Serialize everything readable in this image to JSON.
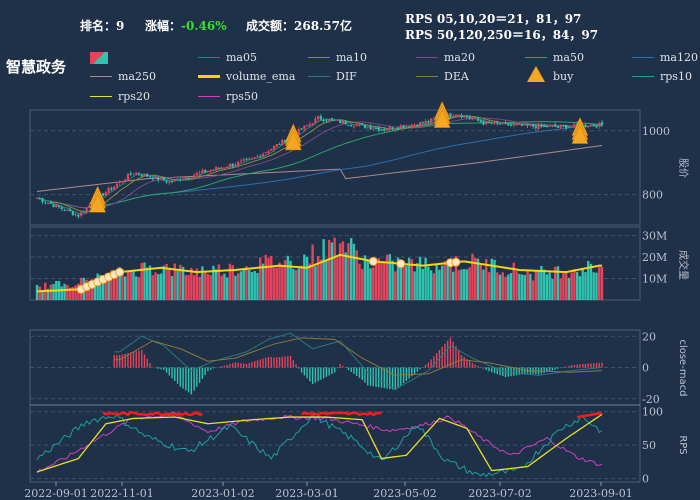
{
  "header": {
    "rank_label": "排名：",
    "rank_value": "9",
    "change_label": "涨幅：",
    "change_value": "-0.46%",
    "volume_label": "成交额：",
    "volume_value": "268.57亿",
    "rps_line1": "RPS 05,10,20＝21，81，97",
    "rps_line2": "RPS 50,120,250＝16，84，97"
  },
  "title": "智慧政务",
  "colors": {
    "background": "#1f3049",
    "up": "#e8435a",
    "down": "#2ec4b0",
    "volume_ema": "#f5d60e",
    "buy": "#f5a623",
    "macd_red": "#e8435a",
    "macd_green": "#2ec4b0"
  },
  "legend": [
    {
      "label": "ma05",
      "color": "#1b8a8c",
      "icon": "line"
    },
    {
      "label": "ma10",
      "color": "#8a8a3c",
      "icon": "line"
    },
    {
      "label": "ma20",
      "color": "#7a4a8a",
      "icon": "line"
    },
    {
      "label": "ma50",
      "color": "#2ea36a",
      "icon": "line"
    },
    {
      "label": "ma120",
      "color": "#2a6fb0",
      "icon": "line"
    },
    {
      "label": "ma250",
      "color": "#b08a8a",
      "icon": "line"
    },
    {
      "label": "volume_ema",
      "color": "#f5d60e",
      "icon": "thick-line"
    },
    {
      "label": "DIF",
      "color": "#2a7a7a",
      "icon": "line"
    },
    {
      "label": "DEA",
      "color": "#8a7a3a",
      "icon": "line"
    },
    {
      "label": "buy",
      "color": "#f5a623",
      "icon": "triangle"
    },
    {
      "label": "rps10",
      "color": "#1aa0a0",
      "icon": "line"
    },
    {
      "label": "rps20",
      "color": "#e8e020",
      "icon": "line"
    },
    {
      "label": "rps50",
      "color": "#d040c0",
      "icon": "line"
    }
  ],
  "chart_data": [
    {
      "type": "candlestick",
      "ylabel": "股价",
      "yticks": [
        800,
        1000
      ],
      "ylim": [
        705,
        1065
      ],
      "dates": [
        "2022-09-01",
        "2022-11-01",
        "2023-01-02",
        "2023-03-01",
        "2023-05-02",
        "2023-07-02",
        "2023-09-01"
      ],
      "close_keypoints": [
        [
          0,
          790
        ],
        [
          8,
          760
        ],
        [
          15,
          735
        ],
        [
          22,
          790
        ],
        [
          35,
          870
        ],
        [
          48,
          840
        ],
        [
          62,
          875
        ],
        [
          78,
          910
        ],
        [
          92,
          980
        ],
        [
          102,
          1040
        ],
        [
          112,
          1025
        ],
        [
          125,
          1005
        ],
        [
          140,
          1025
        ],
        [
          152,
          1055
        ],
        [
          162,
          1025
        ],
        [
          176,
          1015
        ],
        [
          190,
          1012
        ],
        [
          200,
          1018
        ]
      ],
      "ma250_keypoints": [
        [
          0,
          810
        ],
        [
          40,
          850
        ],
        [
          110,
          880
        ],
        [
          112,
          850
        ],
        [
          160,
          900
        ],
        [
          210,
          960
        ]
      ],
      "buy_index": [
        22,
        93,
        147,
        197
      ],
      "buy_price": [
        770,
        965,
        1035,
        985
      ]
    },
    {
      "type": "bar",
      "ylabel": "成交量",
      "yticks": [
        "10M",
        "20M",
        "30M"
      ],
      "ylim": [
        0,
        34
      ],
      "unit": "M",
      "volume_keypoints": [
        [
          0,
          6
        ],
        [
          15,
          8
        ],
        [
          23,
          10
        ],
        [
          30,
          12
        ],
        [
          40,
          15
        ],
        [
          55,
          13
        ],
        [
          70,
          14
        ],
        [
          85,
          17
        ],
        [
          95,
          18
        ],
        [
          105,
          23
        ],
        [
          110,
          27
        ],
        [
          120,
          17
        ],
        [
          140,
          16
        ],
        [
          160,
          17
        ],
        [
          180,
          12
        ],
        [
          195,
          14
        ],
        [
          204,
          15
        ]
      ],
      "ema_keypoints": [
        [
          0,
          4
        ],
        [
          16,
          5
        ],
        [
          30,
          13
        ],
        [
          45,
          15
        ],
        [
          58,
          13
        ],
        [
          72,
          14
        ],
        [
          88,
          16
        ],
        [
          98,
          15
        ],
        [
          110,
          21
        ],
        [
          122,
          18
        ],
        [
          140,
          16
        ],
        [
          155,
          18
        ],
        [
          175,
          14
        ],
        [
          192,
          13
        ],
        [
          204,
          16
        ]
      ]
    },
    {
      "type": "line",
      "ylabel": "close-macd",
      "yticks": [
        -20,
        0,
        20
      ],
      "ylim": [
        -24,
        24
      ],
      "dif_keypoints": [
        [
          30,
          10
        ],
        [
          38,
          20
        ],
        [
          46,
          14
        ],
        [
          56,
          -2
        ],
        [
          64,
          4
        ],
        [
          76,
          10
        ],
        [
          84,
          18
        ],
        [
          92,
          22
        ],
        [
          100,
          12
        ],
        [
          110,
          17
        ],
        [
          120,
          -3
        ],
        [
          130,
          -14
        ],
        [
          142,
          -2
        ],
        [
          150,
          14
        ],
        [
          158,
          6
        ],
        [
          170,
          -3
        ],
        [
          182,
          -5
        ],
        [
          194,
          -2
        ],
        [
          205,
          0
        ]
      ],
      "dea_keypoints": [
        [
          30,
          5
        ],
        [
          42,
          17
        ],
        [
          52,
          12
        ],
        [
          62,
          4
        ],
        [
          72,
          6
        ],
        [
          86,
          15
        ],
        [
          96,
          19
        ],
        [
          108,
          18
        ],
        [
          118,
          6
        ],
        [
          130,
          -5
        ],
        [
          142,
          -4
        ],
        [
          154,
          5
        ],
        [
          164,
          3
        ],
        [
          178,
          -2
        ],
        [
          194,
          -3
        ],
        [
          205,
          -2
        ]
      ]
    },
    {
      "type": "line",
      "ylabel": "RPS",
      "yticks": [
        0,
        50,
        100
      ],
      "ylim": [
        -5,
        110
      ],
      "rps10_keypoints": [
        [
          0,
          30
        ],
        [
          10,
          60
        ],
        [
          18,
          85
        ],
        [
          28,
          95
        ],
        [
          40,
          62
        ],
        [
          55,
          40
        ],
        [
          70,
          78
        ],
        [
          85,
          30
        ],
        [
          100,
          95
        ],
        [
          115,
          58
        ],
        [
          125,
          25
        ],
        [
          138,
          82
        ],
        [
          148,
          28
        ],
        [
          160,
          5
        ],
        [
          175,
          12
        ],
        [
          190,
          75
        ],
        [
          198,
          92
        ],
        [
          205,
          70
        ]
      ],
      "rps20_keypoints": [
        [
          0,
          10
        ],
        [
          15,
          30
        ],
        [
          25,
          82
        ],
        [
          35,
          90
        ],
        [
          50,
          92
        ],
        [
          62,
          82
        ],
        [
          78,
          88
        ],
        [
          92,
          92
        ],
        [
          105,
          92
        ],
        [
          118,
          88
        ],
        [
          125,
          30
        ],
        [
          134,
          35
        ],
        [
          146,
          90
        ],
        [
          156,
          75
        ],
        [
          165,
          12
        ],
        [
          178,
          18
        ],
        [
          192,
          60
        ],
        [
          205,
          96
        ]
      ],
      "rps50_keypoints": [
        [
          0,
          10
        ],
        [
          10,
          30
        ],
        [
          20,
          55
        ],
        [
          35,
          90
        ],
        [
          50,
          96
        ],
        [
          62,
          70
        ],
        [
          75,
          86
        ],
        [
          88,
          92
        ],
        [
          105,
          90
        ],
        [
          118,
          80
        ],
        [
          128,
          72
        ],
        [
          138,
          78
        ],
        [
          150,
          92
        ],
        [
          162,
          58
        ],
        [
          172,
          34
        ],
        [
          185,
          60
        ],
        [
          196,
          32
        ],
        [
          205,
          20
        ]
      ]
    }
  ]
}
